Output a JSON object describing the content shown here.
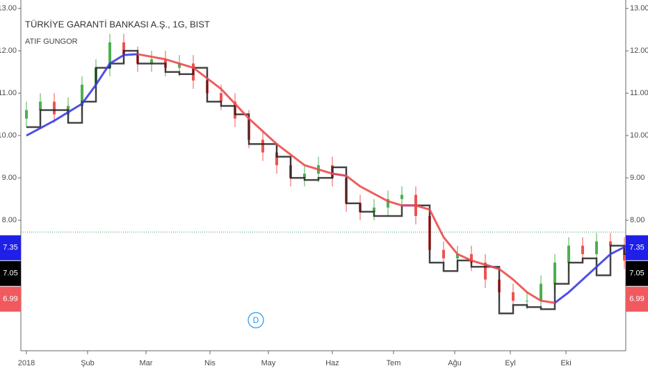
{
  "chart_data": {
    "type": "candlestick",
    "title": "TÜRKİYE GARANTİ BANKASI A.Ş., 1G, BIST",
    "subtitle": "ATIF GUNGOR",
    "xlim": [
      -2,
      215.5
    ],
    "ylim": [
      5.05,
      13.2
    ],
    "yticks": [
      {
        "value": 8,
        "label": "8.00"
      },
      {
        "value": 9,
        "label": "9.00"
      },
      {
        "value": 10,
        "label": "10.00"
      },
      {
        "value": 11,
        "label": "11.00"
      },
      {
        "value": 12,
        "label": "12.00"
      },
      {
        "value": 13,
        "label": "13.00"
      }
    ],
    "xticks": [
      {
        "value": 0,
        "label": "2018"
      },
      {
        "value": 22,
        "label": "Şub"
      },
      {
        "value": 43,
        "label": "Mar"
      },
      {
        "value": 66,
        "label": "Nis"
      },
      {
        "value": 87,
        "label": "May"
      },
      {
        "value": 110,
        "label": "Haz"
      },
      {
        "value": 132,
        "label": "Tem"
      },
      {
        "value": 154,
        "label": "Ağu"
      },
      {
        "value": 174,
        "label": "Eyl"
      },
      {
        "value": 194,
        "label": "Eki"
      }
    ],
    "candles": {
      "up_color": "#4caf50",
      "down_color": "#ef5350",
      "x": [
        0,
        5,
        10,
        15,
        20,
        25,
        30,
        35,
        40,
        45,
        50,
        55,
        60,
        65,
        70,
        75,
        80,
        85,
        90,
        95,
        100,
        105,
        110,
        115,
        120,
        125,
        130,
        135,
        140,
        145,
        150,
        155,
        160,
        165,
        170,
        175,
        180,
        185,
        190,
        195,
        200,
        205,
        210,
        215
      ],
      "open": [
        10.4,
        10.6,
        10.8,
        10.5,
        10.7,
        11.2,
        11.6,
        12.2,
        11.9,
        11.7,
        11.8,
        11.6,
        11.7,
        11.3,
        11.0,
        10.8,
        10.4,
        9.9,
        9.6,
        9.3,
        9.0,
        9.1,
        9.3,
        9.0,
        8.4,
        8.2,
        8.3,
        8.5,
        8.6,
        8.1,
        7.3,
        7.1,
        7.2,
        7.0,
        6.6,
        6.3,
        6.1,
        6.1,
        6.5,
        7.0,
        7.4,
        7.2,
        7.5,
        7.4
      ],
      "high": [
        10.8,
        11.0,
        11.0,
        10.9,
        11.4,
        11.8,
        12.4,
        12.4,
        12.1,
        12.0,
        12.0,
        11.9,
        11.9,
        11.5,
        11.2,
        11.0,
        10.6,
        10.1,
        9.8,
        9.5,
        9.3,
        9.5,
        9.5,
        9.2,
        8.6,
        8.5,
        8.7,
        8.8,
        8.8,
        8.3,
        7.5,
        7.4,
        7.4,
        7.2,
        6.8,
        6.5,
        6.3,
        6.7,
        7.2,
        7.6,
        7.6,
        7.7,
        7.7,
        7.6
      ],
      "low": [
        10.2,
        10.4,
        10.3,
        10.3,
        10.5,
        11.0,
        11.4,
        11.7,
        11.5,
        11.5,
        11.4,
        11.4,
        11.1,
        10.8,
        10.6,
        10.2,
        9.7,
        9.4,
        9.1,
        8.8,
        8.8,
        8.9,
        8.8,
        8.2,
        8.0,
        8.0,
        8.1,
        8.3,
        7.9,
        7.1,
        6.9,
        6.9,
        6.8,
        6.4,
        6.1,
        5.9,
        5.9,
        5.9,
        6.3,
        6.8,
        7.0,
        7.0,
        7.2,
        6.85
      ],
      "close": [
        10.6,
        10.8,
        10.5,
        10.7,
        11.2,
        11.6,
        12.2,
        11.9,
        11.7,
        11.8,
        11.6,
        11.7,
        11.3,
        11.0,
        10.8,
        10.4,
        9.9,
        9.6,
        9.3,
        9.0,
        9.1,
        9.3,
        9.0,
        8.4,
        8.2,
        8.3,
        8.5,
        8.6,
        8.1,
        7.3,
        7.1,
        7.2,
        7.0,
        6.6,
        6.3,
        6.1,
        6.1,
        6.5,
        7.0,
        7.4,
        7.2,
        7.5,
        7.4,
        7.05
      ]
    },
    "ma": {
      "x": [
        0,
        10,
        20,
        25,
        30,
        35,
        40,
        50,
        60,
        70,
        80,
        90,
        100,
        110,
        115,
        120,
        130,
        135,
        140,
        145,
        150,
        155,
        160,
        165,
        170,
        175,
        180,
        185,
        190,
        195,
        200,
        205,
        210,
        216
      ],
      "series": [
        {
          "color": "#3b3be6",
          "values": [
            10.0,
            10.35,
            10.75,
            11.2,
            11.7,
            11.9,
            11.92,
            null,
            null,
            null,
            null,
            null,
            null,
            9.1,
            9.05,
            null,
            null,
            8.35,
            8.35,
            null,
            null,
            null,
            null,
            6.95,
            6.85,
            null,
            null,
            null,
            6.05,
            6.3,
            6.6,
            6.9,
            7.2,
            7.4
          ]
        },
        {
          "color": "#ee4b4b",
          "values": [
            null,
            null,
            null,
            null,
            null,
            null,
            11.92,
            11.8,
            11.6,
            11.1,
            10.4,
            9.8,
            9.3,
            9.1,
            9.05,
            8.8,
            8.45,
            8.35,
            8.35,
            8.25,
            7.6,
            7.2,
            7.05,
            6.95,
            6.85,
            6.6,
            6.3,
            6.1,
            6.05,
            null,
            null,
            null,
            null,
            null
          ]
        }
      ]
    },
    "step": {
      "color": "#222222",
      "x": [
        0,
        5,
        10,
        15,
        20,
        25,
        30,
        35,
        40,
        45,
        50,
        55,
        60,
        65,
        70,
        75,
        80,
        85,
        90,
        95,
        100,
        105,
        110,
        115,
        120,
        125,
        130,
        135,
        140,
        145,
        150,
        155,
        160,
        165,
        170,
        175,
        180,
        185,
        190,
        195,
        200,
        205,
        210,
        215
      ],
      "values": [
        10.2,
        10.6,
        10.6,
        10.3,
        10.8,
        11.6,
        11.7,
        12.0,
        11.7,
        11.7,
        11.5,
        11.45,
        11.6,
        10.8,
        10.7,
        10.5,
        9.8,
        9.8,
        9.5,
        9.0,
        8.95,
        9.0,
        9.25,
        8.4,
        8.2,
        8.1,
        8.1,
        8.35,
        8.35,
        7.0,
        6.8,
        7.05,
        6.9,
        6.9,
        5.8,
        6.0,
        5.95,
        5.9,
        6.5,
        7.0,
        7.1,
        6.7,
        7.4,
        7.2
      ]
    },
    "hline": {
      "value": 7.72,
      "color": "#2e9e5b"
    },
    "price_labels": [
      {
        "value": 7.35,
        "color": "#1f1fe8"
      },
      {
        "value": 7.05,
        "color": "#000000"
      },
      {
        "value": 6.99,
        "color": "#f05a5f"
      }
    ],
    "marker": {
      "label": "D",
      "x": 82.5,
      "color": "#2196f3"
    }
  }
}
